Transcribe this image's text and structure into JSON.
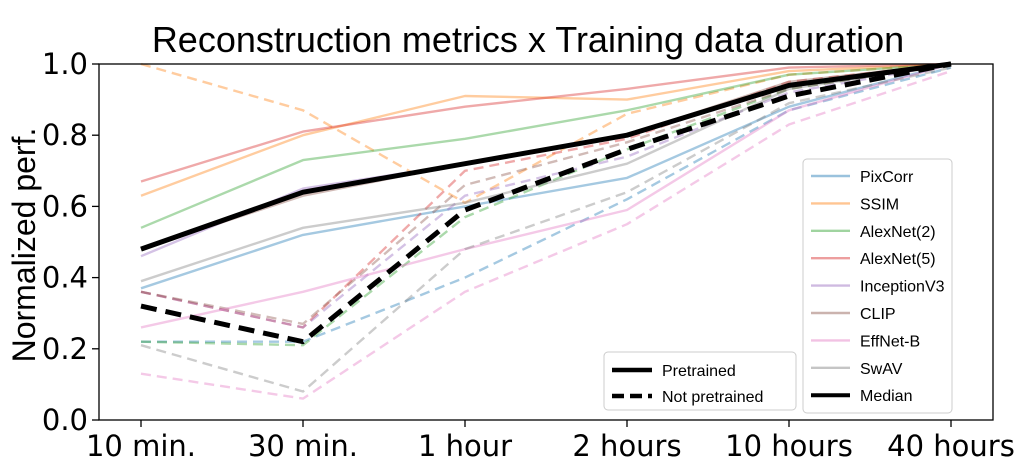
{
  "chart_data": {
    "type": "line",
    "title": "Reconstruction metrics x Training data duration",
    "xlabel": "",
    "ylabel": "Normalized perf.",
    "categories": [
      "10 min.",
      "30 min.",
      "1 hour",
      "2 hours",
      "10 hours",
      "40 hours"
    ],
    "ylim": [
      0.0,
      1.0
    ],
    "yticks": [
      "0.0",
      "0.2",
      "0.4",
      "0.6",
      "0.8",
      "1.0"
    ],
    "grid": false,
    "metric_legend": {
      "placement": "right",
      "entries": [
        "PixCorr",
        "SSIM",
        "AlexNet(2)",
        "AlexNet(5)",
        "InceptionV3",
        "CLIP",
        "EffNet-B",
        "SwAV",
        "Median"
      ]
    },
    "style_legend": {
      "placement": "bottom-right-center",
      "entries": [
        "Pretrained",
        "Not pretrained"
      ]
    },
    "series": [
      {
        "name": "PixCorr",
        "color": "#1f77b4",
        "pretrained": [
          0.37,
          0.52,
          0.6,
          0.68,
          0.88,
          1.0
        ],
        "not_pretrained": [
          0.22,
          0.22,
          0.4,
          0.62,
          0.87,
          0.99
        ]
      },
      {
        "name": "SSIM",
        "color": "#ff7f0e",
        "pretrained": [
          0.63,
          0.8,
          0.91,
          0.9,
          0.98,
          1.0
        ],
        "not_pretrained": [
          1.0,
          0.87,
          0.61,
          0.86,
          0.97,
          1.0
        ]
      },
      {
        "name": "AlexNet(2)",
        "color": "#2ca02c",
        "pretrained": [
          0.54,
          0.73,
          0.79,
          0.87,
          0.97,
          1.0
        ],
        "not_pretrained": [
          0.22,
          0.21,
          0.57,
          0.76,
          0.93,
          1.0
        ]
      },
      {
        "name": "AlexNet(5)",
        "color": "#d62728",
        "pretrained": [
          0.67,
          0.81,
          0.88,
          0.93,
          0.99,
          1.0
        ],
        "not_pretrained": [
          0.36,
          0.26,
          0.7,
          0.79,
          0.95,
          1.0
        ]
      },
      {
        "name": "InceptionV3",
        "color": "#9467bd",
        "pretrained": [
          0.46,
          0.65,
          0.72,
          0.8,
          0.94,
          1.0
        ],
        "not_pretrained": [
          0.36,
          0.26,
          0.63,
          0.74,
          0.92,
          1.0
        ]
      },
      {
        "name": "CLIP",
        "color": "#8c564b",
        "pretrained": [
          0.48,
          0.63,
          0.72,
          0.8,
          0.95,
          1.0
        ],
        "not_pretrained": [
          0.36,
          0.27,
          0.66,
          0.78,
          0.93,
          1.0
        ]
      },
      {
        "name": "EffNet-B",
        "color": "#e377c2",
        "pretrained": [
          0.26,
          0.36,
          0.48,
          0.59,
          0.87,
          1.0
        ],
        "not_pretrained": [
          0.13,
          0.06,
          0.36,
          0.55,
          0.83,
          0.98
        ]
      },
      {
        "name": "SwAV",
        "color": "#7f7f7f",
        "pretrained": [
          0.39,
          0.54,
          0.61,
          0.72,
          0.93,
          1.0
        ],
        "not_pretrained": [
          0.21,
          0.08,
          0.48,
          0.64,
          0.89,
          0.99
        ]
      },
      {
        "name": "Median",
        "color": "#000000",
        "pretrained": [
          0.48,
          0.64,
          0.72,
          0.8,
          0.94,
          1.0
        ],
        "not_pretrained": [
          0.32,
          0.22,
          0.59,
          0.76,
          0.91,
          1.0
        ]
      }
    ]
  }
}
